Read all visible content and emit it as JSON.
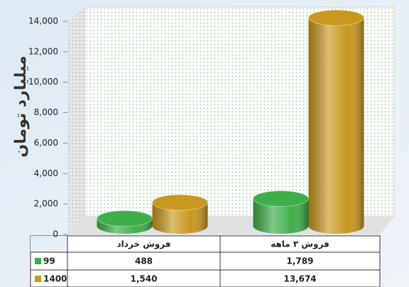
{
  "chart_data": {
    "type": "bar",
    "y_label": "میلیارد تومان",
    "categories": [
      "فروش خرداد",
      "فروش ۳ ماهه"
    ],
    "series": [
      {
        "name": "99",
        "color": "#3fae4a",
        "values": [
          488,
          1789
        ],
        "value_labels": [
          "488",
          "1,789"
        ]
      },
      {
        "name": "1400",
        "color": "#c9981f",
        "values": [
          1540,
          13674
        ],
        "value_labels": [
          "1,540",
          "13,674"
        ]
      }
    ],
    "ylim": [
      0,
      14000
    ],
    "yticks": [
      0,
      {
        "value": 2000,
        "label": "2,000"
      },
      {
        "value": 4000,
        "label": "4,000"
      },
      {
        "value": 6000,
        "label": "6,000"
      },
      {
        "value": 8000,
        "label": "8,000"
      },
      {
        "value": 10000,
        "label": "10,000"
      },
      {
        "value": 12000,
        "label": "12,000"
      },
      {
        "value": 14000,
        "label": "14,000"
      }
    ],
    "grid": false
  }
}
